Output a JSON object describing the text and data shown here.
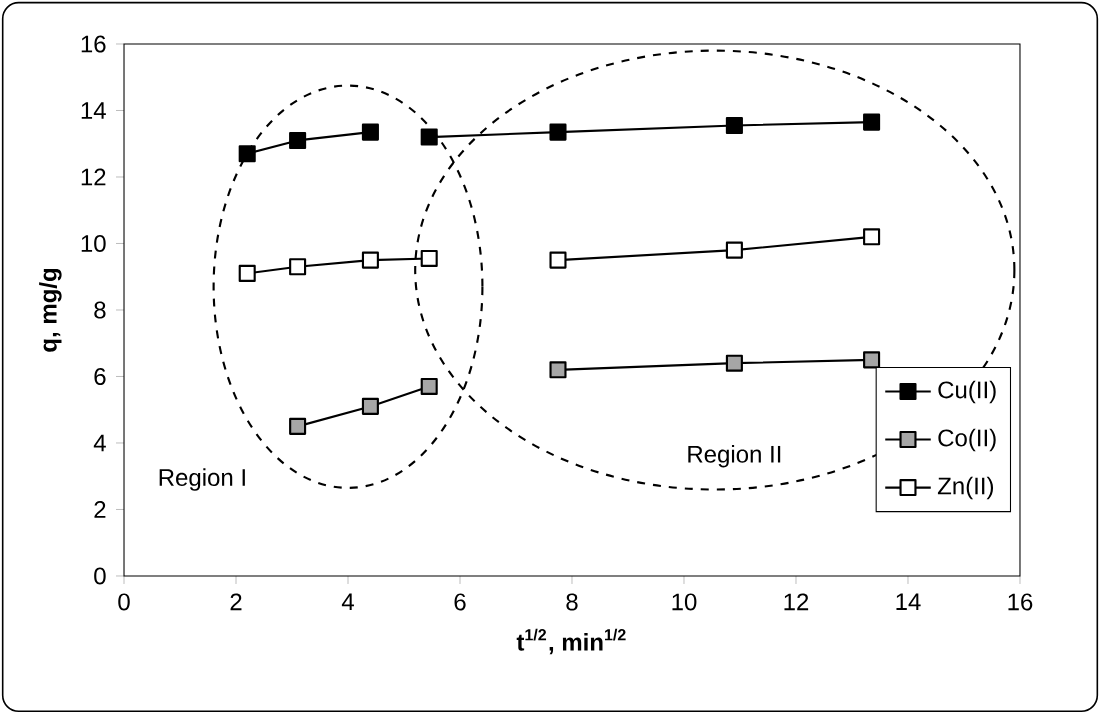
{
  "chart_data": {
    "type": "line",
    "xlabel": "t$^{1/2}$, min$^{1/2}$",
    "ylabel": "q, mg/g",
    "xlim": [
      0,
      16
    ],
    "ylim": [
      0,
      16
    ],
    "xticks": [
      0,
      2,
      4,
      6,
      8,
      10,
      12,
      14,
      16
    ],
    "yticks": [
      0,
      2,
      4,
      6,
      8,
      10,
      12,
      14,
      16
    ],
    "marker": "square",
    "legend": "bottom right",
    "grid": false,
    "series": [
      {
        "name": "Cu(II)",
        "color": "#000000",
        "x": [
          2.2,
          3.1,
          4.4
        ],
        "values": [
          12.7,
          13.1,
          13.35
        ]
      },
      {
        "name": "Co(II)",
        "color": "#a6a6a6",
        "x": [
          3.1,
          4.4,
          5.45
        ],
        "values": [
          4.5,
          5.1,
          5.7
        ]
      },
      {
        "name": "Zn(II)",
        "color": "#ffffff",
        "x": [
          2.2,
          3.1,
          4.4,
          5.45
        ],
        "values": [
          9.1,
          9.3,
          9.5,
          9.55
        ]
      },
      {
        "color": "#000000",
        "x": [
          5.45,
          7.75,
          10.9,
          13.35
        ],
        "values": [
          13.2,
          13.35,
          13.55,
          13.65
        ]
      },
      {
        "color": "#a6a6a6",
        "x": [
          7.75,
          10.9,
          13.35
        ],
        "values": [
          6.2,
          6.4,
          6.5
        ]
      },
      {
        "color": "#ffffff",
        "x": [
          7.75,
          10.9,
          13.35
        ],
        "values": [
          9.5,
          9.8,
          10.2
        ]
      }
    ],
    "annotations": [
      "Region I",
      "Region II"
    ]
  }
}
